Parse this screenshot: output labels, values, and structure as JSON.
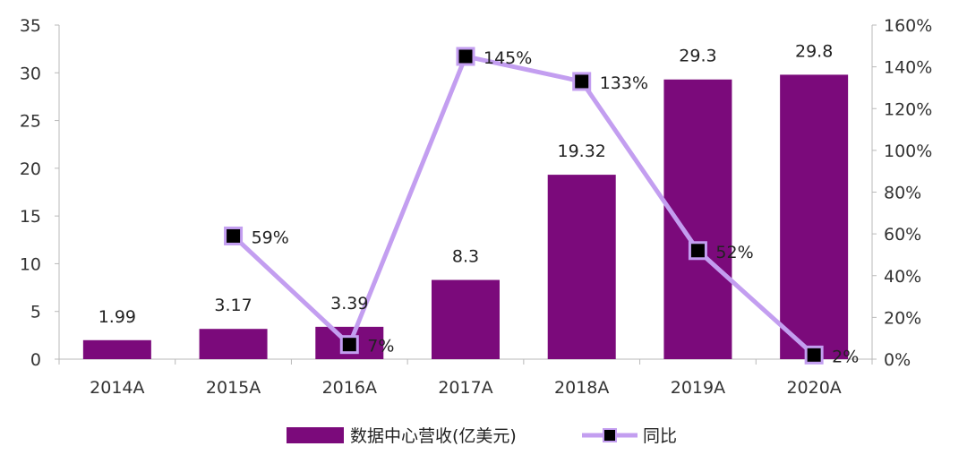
{
  "chart_data": {
    "type": "bar",
    "categories": [
      "2014A",
      "2015A",
      "2016A",
      "2017A",
      "2018A",
      "2019A",
      "2020A"
    ],
    "series": [
      {
        "name": "数据中心营收(亿美元)",
        "type": "bar",
        "axis": "left",
        "values": [
          1.99,
          3.17,
          3.39,
          8.3,
          19.32,
          29.3,
          29.8
        ],
        "labels": [
          "1.99",
          "3.17",
          "3.39",
          "8.3",
          "19.32",
          "29.3",
          "29.8"
        ],
        "color": "#7b0a7b"
      },
      {
        "name": "同比",
        "type": "line",
        "axis": "right",
        "x": [
          "2015A",
          "2016A",
          "2017A",
          "2018A",
          "2019A",
          "2020A"
        ],
        "values": [
          59,
          7,
          145,
          133,
          52,
          2
        ],
        "labels": [
          "59%",
          "7%",
          "145%",
          "133%",
          "52%",
          "2%"
        ],
        "color": "#c39ef0",
        "marker_color": "#000000"
      }
    ],
    "y_left": {
      "lim": [
        0,
        35
      ],
      "ticks": [
        "0",
        "5",
        "10",
        "15",
        "20",
        "25",
        "30",
        "35"
      ]
    },
    "y_right": {
      "lim": [
        0,
        160
      ],
      "ticks": [
        "0%",
        "20%",
        "40%",
        "60%",
        "80%",
        "100%",
        "120%",
        "140%",
        "160%"
      ]
    },
    "legend": {
      "placement": "bottom"
    },
    "grid": false
  }
}
